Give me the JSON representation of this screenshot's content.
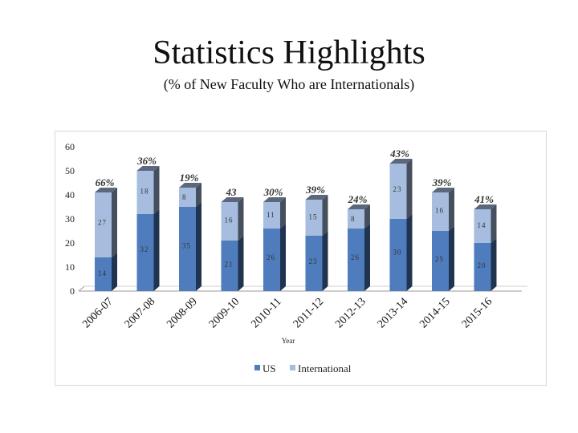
{
  "title": "Statistics Highlights",
  "subtitle": "(% of New Faculty Who are Internationals)",
  "chart_data": {
    "type": "bar",
    "stacked": true,
    "categories": [
      "2006-07",
      "2007-08",
      "2008-09",
      "2009-10",
      "2010-11",
      "2011-12",
      "2012-13",
      "2013-14",
      "2014-15",
      "2015-16"
    ],
    "series": [
      {
        "name": "US",
        "color": "#4f7cbd",
        "values": [
          14,
          32,
          35,
          21,
          26,
          23,
          26,
          30,
          25,
          20
        ]
      },
      {
        "name": "International",
        "color": "#a6bddf",
        "values": [
          27,
          18,
          8,
          16,
          11,
          15,
          8,
          23,
          16,
          14
        ]
      }
    ],
    "percent_labels": [
      "66%",
      "36%",
      "19%",
      "43",
      "30%",
      "39%",
      "24%",
      "43%",
      "39%",
      "41%"
    ],
    "yticks": [
      0,
      10,
      20,
      30,
      40,
      50,
      60
    ],
    "ylim": [
      0,
      60
    ],
    "xlabel": "Year",
    "ylabel": "",
    "legend_position": "bottom"
  }
}
